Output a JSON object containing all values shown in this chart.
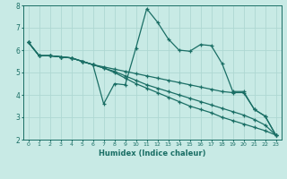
{
  "xlabel": "Humidex (Indice chaleur)",
  "bg_color": "#c8eae5",
  "grid_color": "#aed8d2",
  "line_color": "#1a6e65",
  "xlim": [
    -0.5,
    23.5
  ],
  "ylim": [
    2,
    8
  ],
  "xticks": [
    0,
    1,
    2,
    3,
    4,
    5,
    6,
    7,
    8,
    9,
    10,
    11,
    12,
    13,
    14,
    15,
    16,
    17,
    18,
    19,
    20,
    21,
    22,
    23
  ],
  "yticks": [
    2,
    3,
    4,
    5,
    6,
    7,
    8
  ],
  "series": {
    "wavy_x": [
      0,
      1,
      2,
      3,
      4,
      5,
      6,
      7,
      8,
      9,
      10,
      11,
      12,
      13,
      14,
      15,
      16,
      17,
      18,
      19,
      20,
      21,
      22,
      23
    ],
    "wavy_y": [
      6.35,
      5.75,
      5.75,
      5.7,
      5.65,
      5.5,
      5.35,
      3.6,
      4.5,
      4.45,
      6.1,
      7.85,
      7.25,
      6.5,
      6.0,
      5.95,
      6.25,
      6.2,
      5.4,
      4.15,
      4.15,
      3.35,
      3.05,
      2.2
    ],
    "line1_x": [
      0,
      1,
      2,
      3,
      4,
      5,
      6,
      7,
      8,
      9,
      10,
      11,
      12,
      13,
      14,
      15,
      16,
      17,
      18,
      19,
      20,
      21,
      22,
      23
    ],
    "line1_y": [
      6.35,
      5.75,
      5.75,
      5.7,
      5.65,
      5.5,
      5.35,
      5.25,
      5.15,
      5.05,
      4.95,
      4.85,
      4.75,
      4.65,
      4.55,
      4.45,
      4.35,
      4.25,
      4.15,
      4.1,
      4.1,
      3.35,
      3.05,
      2.2
    ],
    "line2_x": [
      0,
      1,
      2,
      3,
      4,
      5,
      6,
      7,
      8,
      9,
      10,
      11,
      12,
      13,
      14,
      15,
      16,
      17,
      18,
      19,
      20,
      21,
      22,
      23
    ],
    "line2_y": [
      6.35,
      5.75,
      5.75,
      5.7,
      5.65,
      5.5,
      5.35,
      5.2,
      5.05,
      4.85,
      4.65,
      4.45,
      4.3,
      4.15,
      4.0,
      3.85,
      3.7,
      3.55,
      3.4,
      3.25,
      3.1,
      2.9,
      2.65,
      2.2
    ],
    "line3_x": [
      0,
      1,
      2,
      3,
      4,
      5,
      6,
      7,
      8,
      9,
      10,
      11,
      12,
      13,
      14,
      15,
      16,
      17,
      18,
      19,
      20,
      21,
      22,
      23
    ],
    "line3_y": [
      6.35,
      5.75,
      5.75,
      5.7,
      5.65,
      5.5,
      5.35,
      5.2,
      5.0,
      4.75,
      4.5,
      4.3,
      4.1,
      3.9,
      3.7,
      3.5,
      3.35,
      3.2,
      3.0,
      2.85,
      2.7,
      2.55,
      2.4,
      2.2
    ]
  }
}
